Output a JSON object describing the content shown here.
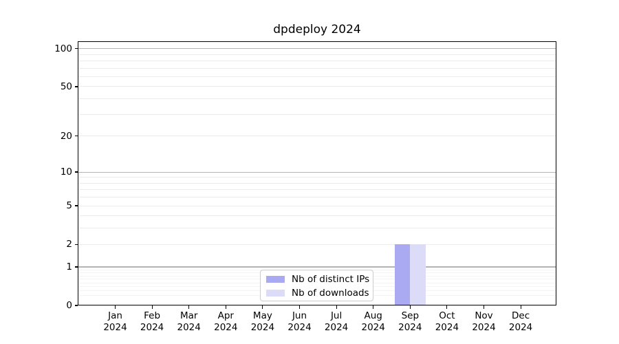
{
  "figure": {
    "background": "#ffffff",
    "axis_color": "#000000"
  },
  "chart_data": {
    "type": "bar",
    "title": "dpdeploy 2024",
    "x": {
      "categories": [
        "Jan",
        "Feb",
        "Mar",
        "Apr",
        "May",
        "Jun",
        "Jul",
        "Aug",
        "Sep",
        "Oct",
        "Nov",
        "Dec"
      ],
      "year_line": "2024"
    },
    "y": {
      "scale": "log1p",
      "ticks": [
        0,
        1,
        2,
        5,
        10,
        20,
        50,
        100
      ],
      "lim": [
        0,
        112
      ],
      "label": ""
    },
    "series": [
      {
        "name": "Nb of distinct IPs",
        "color": "#aaaaf2",
        "values": [
          0,
          0,
          0,
          0,
          0,
          0,
          0,
          0,
          2,
          0,
          0,
          0
        ]
      },
      {
        "name": "Nb of downloads",
        "color": "#dcdcf8",
        "values": [
          0,
          0,
          0,
          0,
          0,
          0,
          0,
          0,
          2,
          0,
          0,
          0
        ]
      }
    ],
    "legend": {
      "position": "inside-bottom-center",
      "border_color": "#cccccc"
    },
    "grid": {
      "major": {
        "values": [
          1,
          10,
          100
        ],
        "color": "#b3b3b3"
      },
      "minor": {
        "values": [
          2,
          3,
          4,
          5,
          6,
          7,
          8,
          9,
          20,
          30,
          40,
          50,
          60,
          70,
          80,
          90
        ],
        "color": "#ececec"
      },
      "minor_faint": {
        "values": [
          0.2,
          0.3,
          0.4,
          0.5,
          0.6,
          0.7,
          0.8,
          0.9
        ],
        "color": "#f4f4f4"
      }
    }
  }
}
